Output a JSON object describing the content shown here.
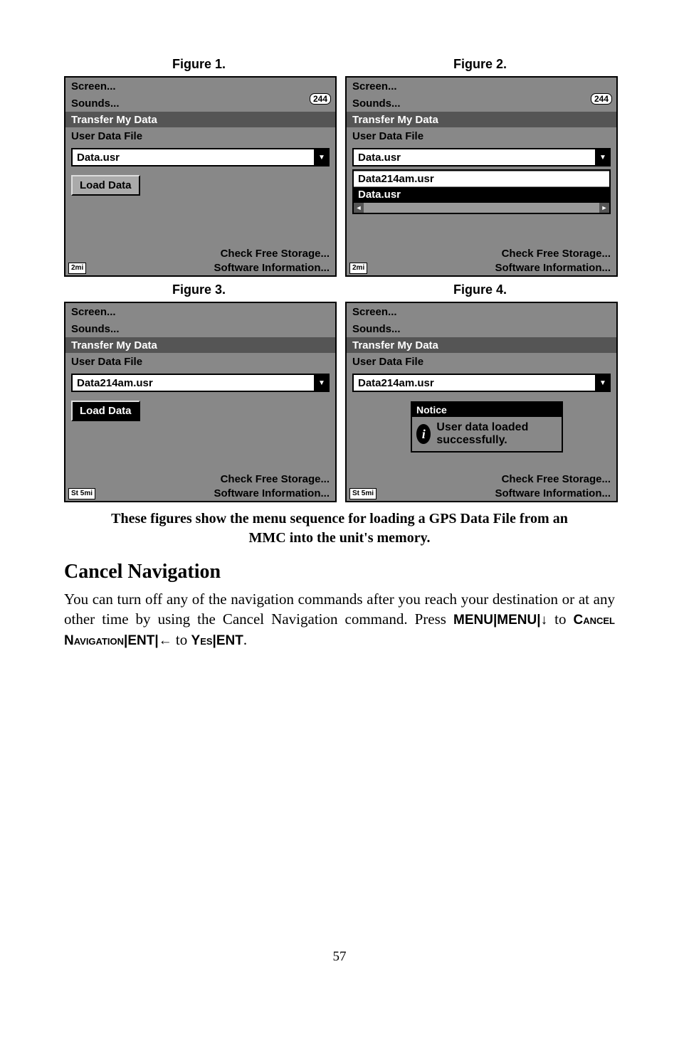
{
  "figs": {
    "f1": {
      "label": "Figure 1.",
      "m1": "Screen...",
      "m2": "Sounds...",
      "pill": "244",
      "title": "Transfer My Data",
      "section": "User Data File",
      "val": "Data.usr",
      "btn": "Load Data",
      "l1": "Check Free Storage...",
      "l2": "Software Information...",
      "map": "2mi",
      "btnInv": false
    },
    "f2": {
      "label": "Figure 2.",
      "m1": "Screen...",
      "m2": "Sounds...",
      "pill": "244",
      "title": "Transfer My Data",
      "section": "User Data File",
      "val": "Data.usr",
      "opt1": "Data214am.usr",
      "opt2": "Data.usr",
      "l1": "Check Free Storage...",
      "l2": "Software Information...",
      "map": "2mi"
    },
    "f3": {
      "label": "Figure 3.",
      "m1": "Screen...",
      "m2": "Sounds...",
      "title": "Transfer My Data",
      "section": "User Data File",
      "val": "Data214am.usr",
      "btn": "Load Data",
      "l1": "Check Free Storage...",
      "l2": "Software Information...",
      "map": "St\n5mi",
      "btnInv": true
    },
    "f4": {
      "label": "Figure 4.",
      "m1": "Screen...",
      "m2": "Sounds...",
      "title": "Transfer My Data",
      "section": "User Data File",
      "val": "Data214am.usr",
      "nt": "Notice",
      "nb": "User data loaded successfully.",
      "l1": "Check Free Storage...",
      "l2": "Software Information...",
      "map": "St\n5mi"
    }
  },
  "caption": "These figures show the menu sequence for loading a GPS Data File from an MMC into the unit's memory.",
  "h2": "Cancel Navigation",
  "body": {
    "p1": "You can turn off any of the navigation commands after you reach your destination or at any other time by using the Cancel Navigation command. Press ",
    "menu": "MENU",
    "bar": "|",
    "down": "↓",
    "to": " to ",
    "cn": "Cancel Navigation",
    "ent": "ENT",
    "left": "←",
    "yes": "Yes",
    "period": "."
  },
  "page": "57"
}
